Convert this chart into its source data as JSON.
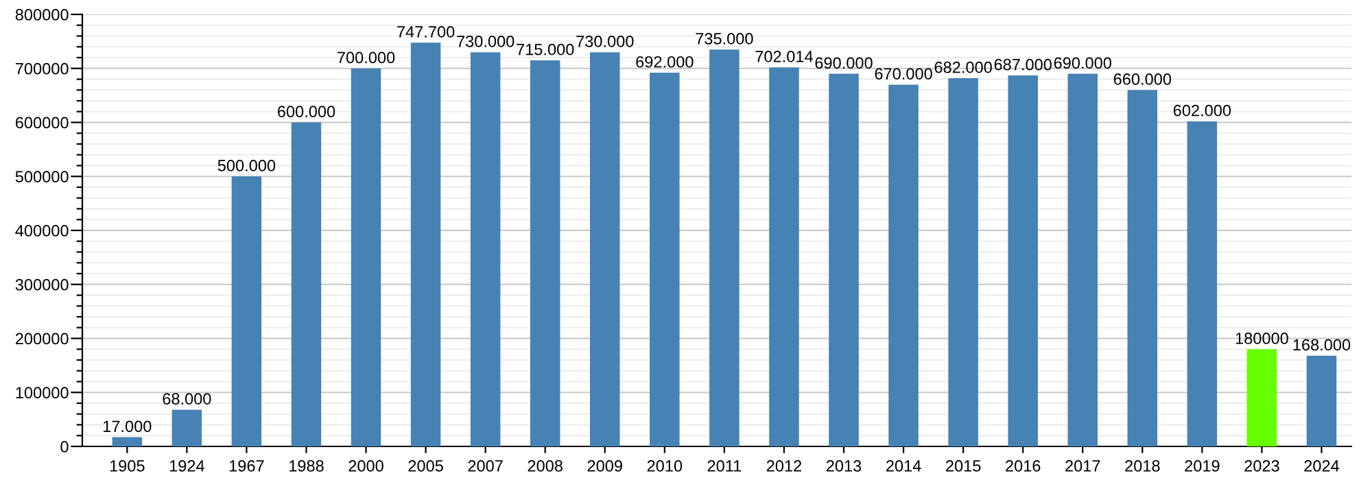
{
  "chart_data": {
    "type": "bar",
    "categories": [
      "1905",
      "1924",
      "1967",
      "1988",
      "2000",
      "2005",
      "2007",
      "2008",
      "2009",
      "2010",
      "2011",
      "2012",
      "2013",
      "2014",
      "2015",
      "2016",
      "2017",
      "2018",
      "2019",
      "2023",
      "2024"
    ],
    "values": [
      17000,
      68000,
      500000,
      600000,
      700000,
      747700,
      730000,
      715000,
      730000,
      692000,
      735000,
      702014,
      690000,
      670000,
      682000,
      687000,
      690000,
      660000,
      602000,
      180000,
      168000
    ],
    "value_labels": [
      "17.000",
      "68.000",
      "500.000",
      "600.000",
      "700.000",
      "747.700",
      "730.000",
      "715.000",
      "730.000",
      "692.000",
      "735.000",
      "702.014",
      "690.000",
      "670.000",
      "682.000",
      "687.000",
      "690.000",
      "660.000",
      "602.000",
      "180000",
      "168.000"
    ],
    "colors": [
      "#4682b4",
      "#4682b4",
      "#4682b4",
      "#4682b4",
      "#4682b4",
      "#4682b4",
      "#4682b4",
      "#4682b4",
      "#4682b4",
      "#4682b4",
      "#4682b4",
      "#4682b4",
      "#4682b4",
      "#4682b4",
      "#4682b4",
      "#4682b4",
      "#4682b4",
      "#4682b4",
      "#4682b4",
      "#66ff00",
      "#4682b4"
    ],
    "ylim": [
      0,
      800000
    ],
    "yticks": [
      0,
      {
        "value": 20000,
        "label": null
      },
      {
        "value": 40000,
        "label": null
      },
      {
        "value": 60000,
        "label": null
      },
      {
        "value": 80000,
        "label": null
      },
      100000,
      {
        "value": 120000,
        "label": null
      },
      {
        "value": 140000,
        "label": null
      },
      {
        "value": 160000,
        "label": null
      },
      {
        "value": 180000,
        "label": null
      },
      200000,
      {
        "value": 220000,
        "label": null
      },
      {
        "value": 240000,
        "label": null
      },
      {
        "value": 260000,
        "label": null
      },
      {
        "value": 280000,
        "label": null
      },
      300000,
      {
        "value": 320000,
        "label": null
      },
      {
        "value": 340000,
        "label": null
      },
      {
        "value": 360000,
        "label": null
      },
      {
        "value": 380000,
        "label": null
      },
      400000,
      {
        "value": 420000,
        "label": null
      },
      {
        "value": 440000,
        "label": null
      },
      {
        "value": 460000,
        "label": null
      },
      {
        "value": 480000,
        "label": null
      },
      500000,
      {
        "value": 520000,
        "label": null
      },
      {
        "value": 540000,
        "label": null
      },
      {
        "value": 560000,
        "label": null
      },
      {
        "value": 580000,
        "label": null
      },
      600000,
      {
        "value": 620000,
        "label": null
      },
      {
        "value": 640000,
        "label": null
      },
      {
        "value": 660000,
        "label": null
      },
      {
        "value": 680000,
        "label": null
      },
      700000,
      {
        "value": 720000,
        "label": null
      },
      {
        "value": 740000,
        "label": null
      },
      {
        "value": 760000,
        "label": null
      },
      {
        "value": 780000,
        "label": null
      },
      800000
    ],
    "grid": "y"
  }
}
